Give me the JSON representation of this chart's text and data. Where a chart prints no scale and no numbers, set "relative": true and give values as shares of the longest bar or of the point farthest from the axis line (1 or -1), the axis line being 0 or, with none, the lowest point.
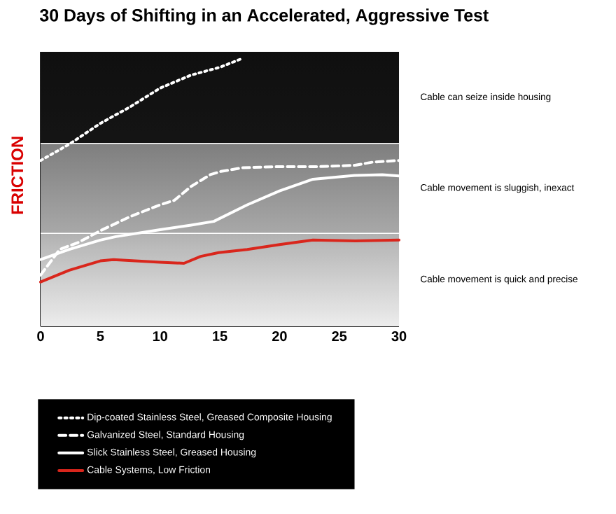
{
  "chart_data": {
    "type": "line",
    "title": "30 Days of Shifting in an Accelerated, Aggressive Test",
    "ylabel": "FRICTION",
    "relative": true,
    "xlim": [
      0,
      30
    ],
    "xticks": [
      0,
      5,
      10,
      15,
      20,
      25,
      30
    ],
    "grid": false,
    "legend": "bottom",
    "marker": "none",
    "series": [
      {
        "name": "Dip-coated Stainless Steel, Greased Composite Housing",
        "color": "#ffffff",
        "line_style": "dotted",
        "x": [
          0,
          2.4,
          5.0,
          7.5,
          10.0,
          12.6,
          15.0,
          16.7
        ],
        "values": [
          0.621,
          0.682,
          0.76,
          0.822,
          0.892,
          0.941,
          0.97,
          1
        ]
      },
      {
        "name": "Galvanized Steel, Standard Housing",
        "color": "#ffffff",
        "line_style": "dashed",
        "x": [
          0,
          1.6,
          3.2,
          5.0,
          7.5,
          10.0,
          11.2,
          12.6,
          14.2,
          15.1,
          16.9,
          20.0,
          23.2,
          26.3,
          27.8,
          30
        ],
        "values": [
          0.192,
          0.288,
          0.315,
          0.358,
          0.411,
          0.455,
          0.472,
          0.524,
          0.568,
          0.58,
          0.594,
          0.598,
          0.598,
          0.603,
          0.615,
          0.621
        ]
      },
      {
        "name": "Slick Stainless Steel, Greased Housing",
        "color": "#ffffff",
        "line_style": "solid",
        "x": [
          0,
          2.4,
          5.0,
          6.3,
          10.0,
          12.6,
          14.5,
          17.3,
          20.0,
          22.8,
          26.3,
          28.6,
          30
        ],
        "values": [
          0.25,
          0.288,
          0.323,
          0.336,
          0.362,
          0.379,
          0.393,
          0.455,
          0.507,
          0.551,
          0.565,
          0.568,
          0.563
        ]
      },
      {
        "name": "Cable Systems, Low Friction",
        "color": "#d9261c",
        "line_style": "solid",
        "x": [
          0,
          2.4,
          5.0,
          6.1,
          10.0,
          12.0,
          13.4,
          14.9,
          17.3,
          20.0,
          22.8,
          26.3,
          30
        ],
        "values": [
          0.166,
          0.21,
          0.245,
          0.25,
          0.24,
          0.236,
          0.262,
          0.276,
          0.288,
          0.306,
          0.323,
          0.32,
          0.323
        ]
      }
    ],
    "bands": [
      {
        "axis": "y",
        "from": 0,
        "to": 0.348,
        "label": "Cable movement is quick and precise",
        "color": "#ececec"
      },
      {
        "axis": "y",
        "from": 0.348,
        "to": 0.685,
        "label": "Cable movement is sluggish, inexact",
        "color": "#a8a8a8"
      },
      {
        "axis": "y",
        "from": 0.685,
        "to": 1.028,
        "label": "Cable can seize inside housing",
        "color": "#141414"
      }
    ],
    "ref_lines": [
      {
        "axis": "y",
        "value": 0.348,
        "color": "#ffffff"
      },
      {
        "axis": "y",
        "value": 0.685,
        "color": "#ffffff"
      }
    ]
  }
}
